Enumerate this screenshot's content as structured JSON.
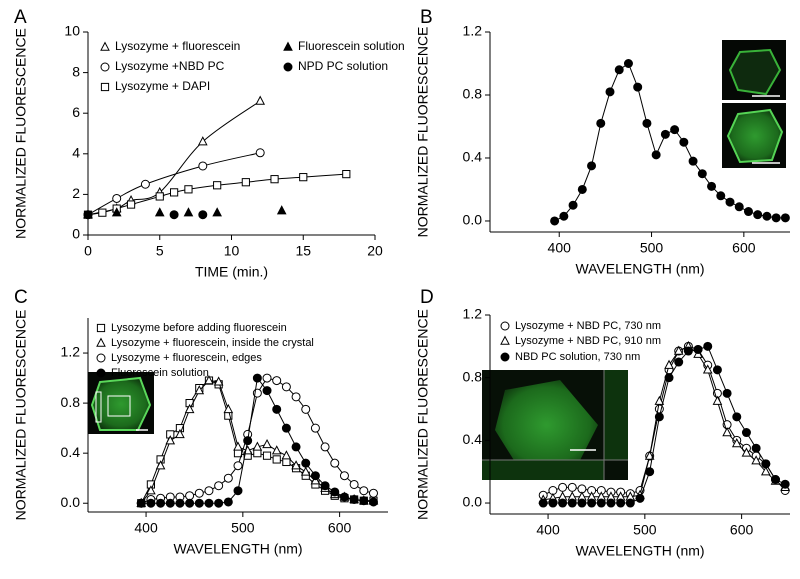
{
  "chart_data": [
    {
      "type": "scatter",
      "label": "A",
      "xlabel": "TIME (min.)",
      "ylabel": "NORMALIZED FLUORESCENCE",
      "xlim": [
        0,
        20
      ],
      "ylim": [
        0,
        10
      ],
      "xticks": [
        0,
        5,
        10,
        15,
        20
      ],
      "yticks": [
        0,
        2,
        4,
        6,
        8,
        10
      ],
      "series": [
        {
          "name": "Lysozyme + fluorescein",
          "marker": "triangle",
          "filled": false,
          "line": "smooth",
          "color": "#000000",
          "x": [
            0,
            2,
            3,
            5,
            8,
            12
          ],
          "values": [
            1,
            1.3,
            1.7,
            2.1,
            4.6,
            6.6
          ]
        },
        {
          "name": "Lysozyme +NBD PC",
          "marker": "circle",
          "filled": false,
          "line": "smooth",
          "color": "#000000",
          "x": [
            0,
            2,
            4,
            8,
            12
          ],
          "values": [
            1,
            1.8,
            2.5,
            3.4,
            4.05
          ]
        },
        {
          "name": "Lysozyme + DAPI",
          "marker": "square",
          "filled": false,
          "line": "smooth",
          "color": "#000000",
          "x": [
            0,
            1,
            2,
            3,
            5,
            6,
            7,
            9,
            11,
            13,
            15,
            18
          ],
          "values": [
            1,
            1.1,
            1.3,
            1.5,
            1.9,
            2.1,
            2.25,
            2.45,
            2.6,
            2.75,
            2.85,
            3.0
          ]
        },
        {
          "name": "Fluorescein solution",
          "marker": "triangle",
          "filled": true,
          "line": "none",
          "color": "#000000",
          "x": [
            0,
            2,
            5,
            7,
            9,
            13.5
          ],
          "values": [
            1,
            1.1,
            1.1,
            1.1,
            1.1,
            1.2
          ]
        },
        {
          "name": "NPD PC solution",
          "marker": "circle",
          "filled": true,
          "line": "none",
          "color": "#000000",
          "x": [
            0,
            6,
            8
          ],
          "values": [
            1,
            1,
            1
          ]
        }
      ]
    },
    {
      "type": "scatter",
      "label": "B",
      "xlabel": "WAVELENGTH (nm)",
      "ylabel": "NORMALIZED FLUORESCENCE",
      "xlim": [
        325,
        650
      ],
      "ylim": [
        -0.07,
        1.2
      ],
      "xticks": [
        400,
        500,
        600
      ],
      "yticks": [
        {
          "value": 0,
          "label": "0.0"
        },
        0.4,
        0.8,
        1.2
      ],
      "x": [
        395,
        405,
        415,
        425,
        435,
        445,
        455,
        465,
        475,
        485,
        495,
        505,
        515,
        525,
        535,
        545,
        555,
        565,
        575,
        585,
        595,
        605,
        615,
        625,
        635,
        645
      ],
      "series": [
        {
          "marker": "circle",
          "filled": true,
          "line": "straight",
          "color": "#000000",
          "values": [
            0,
            0.03,
            0.1,
            0.2,
            0.35,
            0.62,
            0.82,
            0.96,
            1.0,
            0.85,
            0.62,
            0.42,
            0.55,
            0.58,
            0.5,
            0.38,
            0.3,
            0.22,
            0.16,
            0.12,
            0.09,
            0.06,
            0.04,
            0.03,
            0.02,
            0.02
          ]
        }
      ]
    },
    {
      "type": "scatter",
      "label": "C",
      "xlabel": "WAVELENGTH (nm)",
      "ylabel": "NORMALIZED FLUORESCENCE",
      "xlim": [
        340,
        650
      ],
      "ylim": [
        -0.07,
        1.48
      ],
      "xticks": [
        400,
        500,
        600
      ],
      "yticks": [
        {
          "value": 0,
          "label": "0.0"
        },
        0.4,
        0.8,
        1.2
      ],
      "x": [
        395,
        405,
        415,
        425,
        435,
        445,
        455,
        465,
        475,
        485,
        495,
        505,
        515,
        525,
        535,
        545,
        555,
        565,
        575,
        585,
        595,
        605,
        615,
        625,
        635
      ],
      "series": [
        {
          "name": "Lysozyme before adding fluorescein",
          "marker": "square",
          "filled": false,
          "line": "straight",
          "color": "#000000",
          "values": [
            0,
            0.15,
            0.35,
            0.55,
            0.6,
            0.8,
            0.92,
            0.98,
            0.95,
            0.7,
            0.4,
            0.38,
            0.4,
            0.38,
            0.35,
            0.33,
            0.28,
            0.22,
            0.15,
            0.1,
            0.06,
            0.04,
            0.03,
            0.02,
            0.02
          ]
        },
        {
          "name": "Lysozyme + fluorescein, inside the crystal",
          "marker": "triangle",
          "filled": false,
          "line": "straight",
          "color": "#000000",
          "values": [
            0,
            0.1,
            0.3,
            0.5,
            0.55,
            0.75,
            0.9,
            0.98,
            0.97,
            0.75,
            0.45,
            0.42,
            0.45,
            0.47,
            0.42,
            0.38,
            0.3,
            0.25,
            0.18,
            0.12,
            0.07,
            0.05,
            0.03,
            0.02,
            0.02
          ]
        },
        {
          "name": "Lysozyme + fluorescein, edges",
          "marker": "circle",
          "filled": false,
          "line": "straight",
          "color": "#000000",
          "values": [
            0,
            0.03,
            0.04,
            0.05,
            0.05,
            0.06,
            0.08,
            0.1,
            0.14,
            0.2,
            0.3,
            0.55,
            0.88,
            1.0,
            0.98,
            0.93,
            0.85,
            0.75,
            0.6,
            0.45,
            0.32,
            0.22,
            0.15,
            0.1,
            0.08
          ]
        },
        {
          "name": "Fluorescein solution",
          "marker": "circle",
          "filled": true,
          "line": "straight",
          "color": "#000000",
          "values": [
            0,
            0,
            0,
            0,
            0,
            0,
            0,
            0,
            0,
            0.01,
            0.1,
            0.5,
            1.0,
            0.9,
            0.75,
            0.6,
            0.45,
            0.32,
            0.22,
            0.14,
            0.09,
            0.05,
            0.03,
            0.02,
            0.01
          ]
        }
      ]
    },
    {
      "type": "scatter",
      "label": "D",
      "xlabel": "WAVELENGTH (nm)",
      "ylabel": "NORMALIZED FLUORESCENCE",
      "xlim": [
        340,
        650
      ],
      "ylim": [
        -0.07,
        1.2
      ],
      "xticks": [
        400,
        500,
        600
      ],
      "yticks": [
        {
          "value": 0,
          "label": "0.0"
        },
        0.4,
        0.8,
        1.2
      ],
      "x": [
        395,
        405,
        415,
        425,
        435,
        445,
        455,
        465,
        475,
        485,
        495,
        505,
        515,
        525,
        535,
        545,
        555,
        565,
        575,
        585,
        595,
        605,
        615,
        625,
        635,
        645
      ],
      "series": [
        {
          "name": "Lysozyme + NBD PC, 730 nm",
          "marker": "circle",
          "filled": false,
          "line": "straight",
          "color": "#000000",
          "values": [
            0.05,
            0.08,
            0.1,
            0.1,
            0.09,
            0.08,
            0.08,
            0.07,
            0.07,
            0.06,
            0.08,
            0.3,
            0.6,
            0.85,
            0.97,
            1.0,
            0.98,
            0.88,
            0.7,
            0.5,
            0.4,
            0.35,
            0.3,
            0.25,
            0.15,
            0.08
          ]
        },
        {
          "name": "Lysozyme + NBD PC, 910 nm",
          "marker": "triangle",
          "filled": false,
          "line": "straight",
          "color": "#000000",
          "values": [
            0.02,
            0.03,
            0.04,
            0.04,
            0.04,
            0.04,
            0.04,
            0.04,
            0.04,
            0.04,
            0.05,
            0.3,
            0.65,
            0.88,
            0.97,
            1.0,
            0.95,
            0.85,
            0.65,
            0.45,
            0.38,
            0.32,
            0.27,
            0.2,
            0.14,
            0.1
          ]
        },
        {
          "name": "NBD PC solution, 730 nm",
          "marker": "circle",
          "filled": true,
          "line": "straight",
          "color": "#000000",
          "values": [
            0,
            0,
            0,
            0,
            0,
            0,
            0,
            0,
            0,
            0,
            0.03,
            0.2,
            0.55,
            0.8,
            0.9,
            0.97,
            0.98,
            1.0,
            0.85,
            0.7,
            0.55,
            0.45,
            0.35,
            0.25,
            0.15,
            0.12
          ]
        }
      ]
    }
  ]
}
